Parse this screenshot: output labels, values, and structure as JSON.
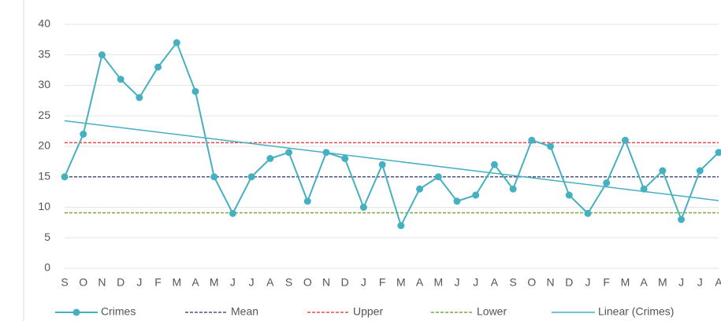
{
  "chart_data": {
    "type": "line",
    "categories": [
      "S",
      "O",
      "N",
      "D",
      "J",
      "F",
      "M",
      "A",
      "M",
      "J",
      "J",
      "A",
      "S",
      "O",
      "N",
      "D",
      "J",
      "F",
      "M",
      "A",
      "M",
      "J",
      "J",
      "A",
      "S",
      "O",
      "N",
      "D",
      "J",
      "F",
      "M",
      "A",
      "M",
      "J",
      "J",
      "A"
    ],
    "series": [
      {
        "name": "Crimes",
        "color": "#45b0c1",
        "values": [
          15,
          22,
          35,
          31,
          28,
          33,
          37,
          29,
          15,
          9,
          15,
          18,
          19,
          11,
          19,
          18,
          10,
          17,
          7,
          13,
          15,
          11,
          12,
          17,
          13,
          21,
          20,
          12,
          9,
          14,
          21,
          13,
          16,
          8,
          16,
          19
        ]
      }
    ],
    "reference_lines": [
      {
        "name": "Mean",
        "value": 15,
        "color": "#4a5578"
      },
      {
        "name": "Upper",
        "value": 20.6,
        "color": "#e5484d"
      },
      {
        "name": "Lower",
        "value": 9.1,
        "color": "#79a83f"
      }
    ],
    "trendline": {
      "name": "Linear (Crimes)",
      "start": 24.2,
      "end": 11.1,
      "color": "#45b0c1"
    },
    "ylim": [
      0,
      40
    ],
    "yticks": [
      0,
      5,
      10,
      15,
      20,
      25,
      30,
      35,
      40
    ],
    "grid": true
  }
}
